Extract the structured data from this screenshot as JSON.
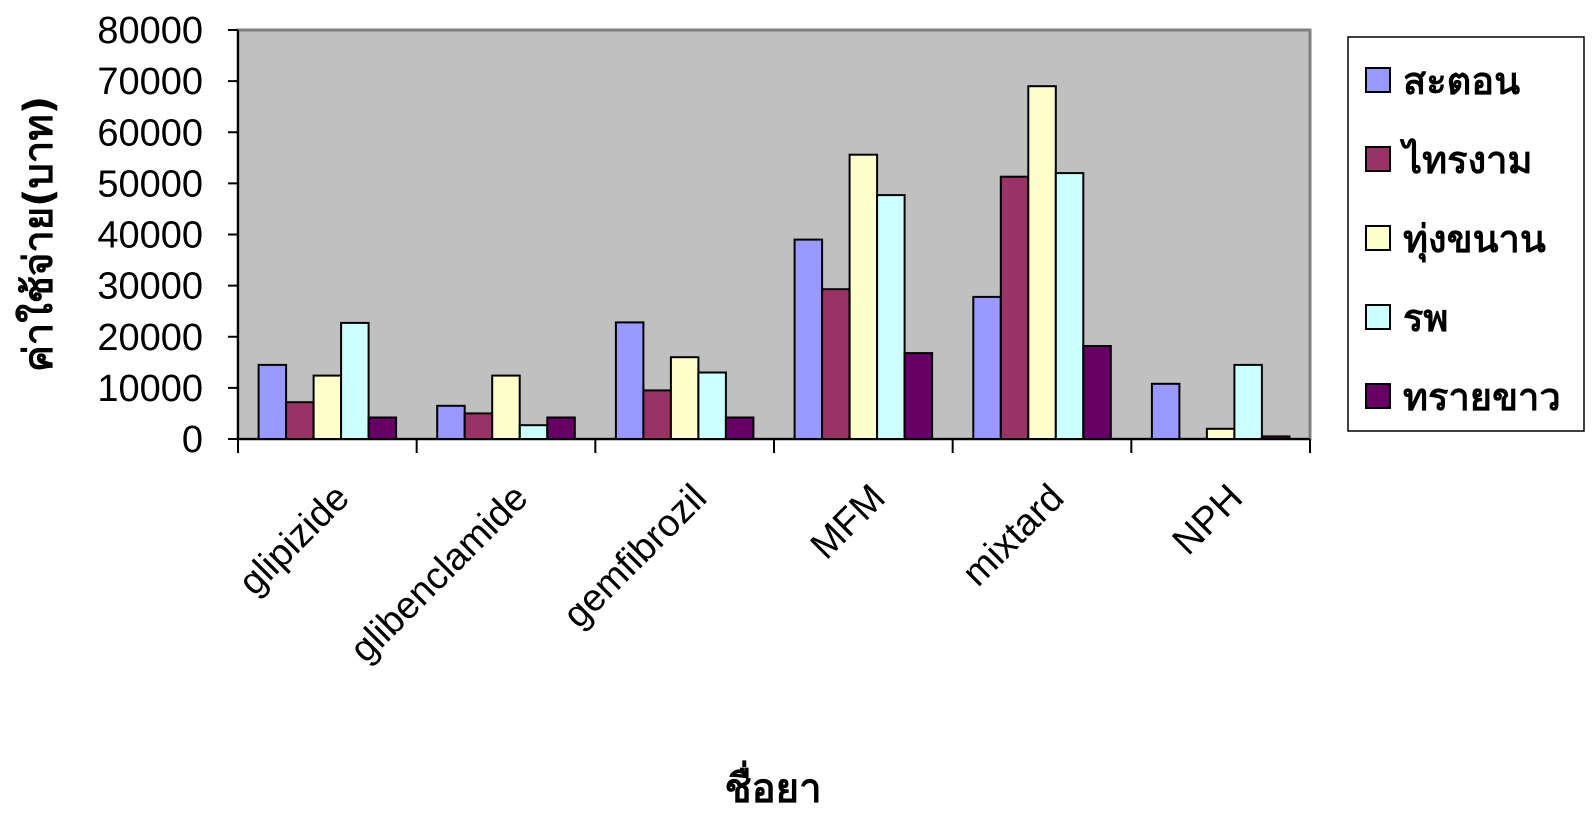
{
  "chart_data": {
    "type": "bar",
    "title": "",
    "xlabel": "ชื่อยา",
    "ylabel": "ค่าใช้จ่าย(บาท)",
    "ylim": [
      0,
      80000
    ],
    "yticks": [
      0,
      10000,
      20000,
      30000,
      40000,
      50000,
      60000,
      70000,
      80000
    ],
    "grid": false,
    "legend_position": "right",
    "plot_background": "#c0c0c0",
    "categories": [
      "glipizide",
      "glibenclamide",
      "gemfibrozil",
      "MFM",
      "mixtard",
      "NPH"
    ],
    "series": [
      {
        "name": "สะตอน",
        "color": "#9999ff",
        "values": [
          14500,
          6500,
          22800,
          39000,
          27800,
          10800
        ]
      },
      {
        "name": "ไทรงาม",
        "color": "#993366",
        "values": [
          7200,
          5000,
          9500,
          29300,
          51300,
          0
        ]
      },
      {
        "name": "ทุ่งขนาน",
        "color": "#ffffcc",
        "values": [
          12400,
          12400,
          16000,
          55600,
          69000,
          2000
        ]
      },
      {
        "name": "รพ",
        "color": "#ccffff",
        "values": [
          22700,
          2700,
          13000,
          47700,
          52000,
          14500
        ]
      },
      {
        "name": "ทรายขาว",
        "color": "#660066",
        "values": [
          4200,
          4200,
          4200,
          16800,
          18200,
          500
        ]
      }
    ]
  }
}
